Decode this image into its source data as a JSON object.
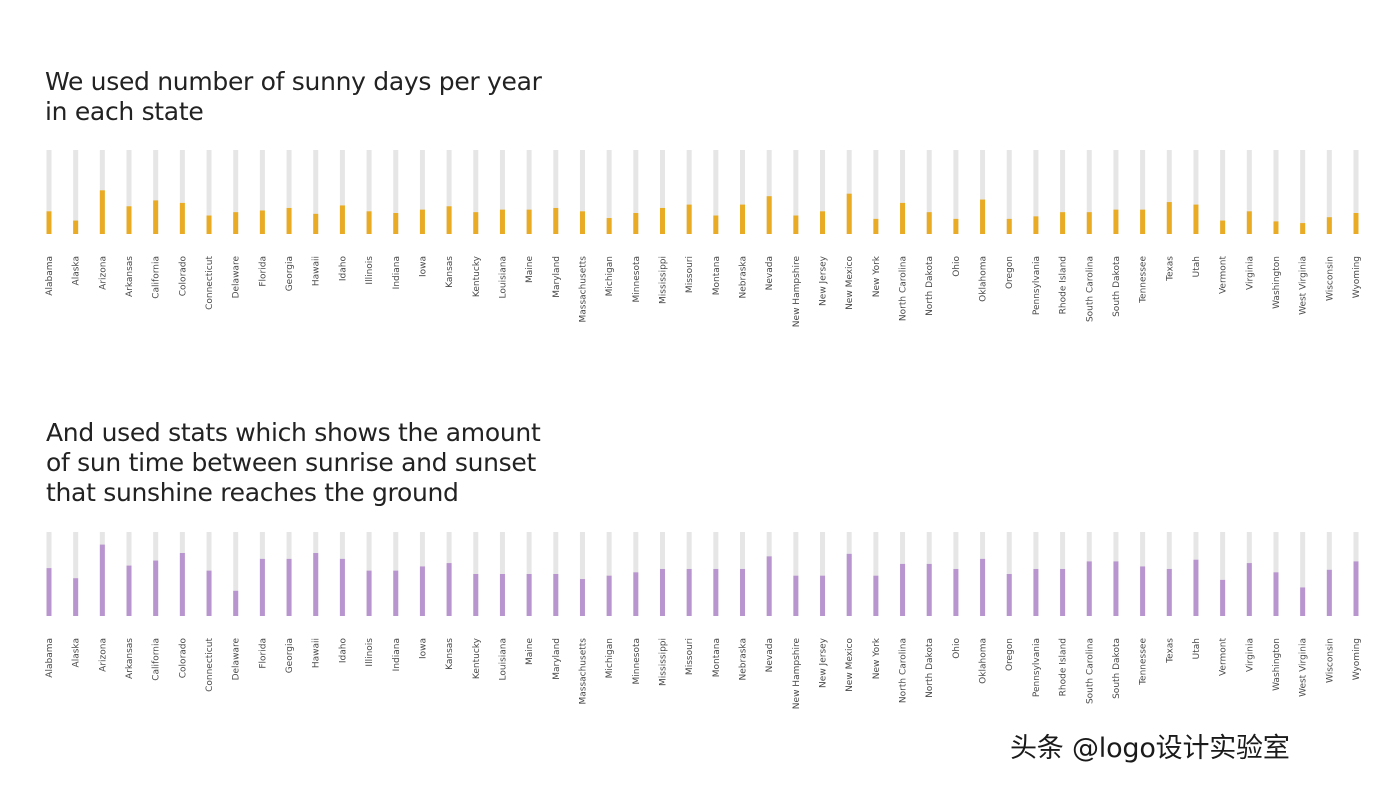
{
  "colors": {
    "track": "#e6e6e6",
    "sunny_days": "#e9ab24",
    "sun_time": "#b995cf",
    "label": "#4a4a4a"
  },
  "headings": {
    "first": [
      "We used number of sunny days per year",
      "in each state"
    ],
    "second": [
      "And used stats which shows the amount",
      "of sun time between sunrise and sunset",
      "that sunshine reaches the ground"
    ]
  },
  "watermark": "头条 @logo设计实验室",
  "chart_data": [
    {
      "type": "bar",
      "title": "We used number of sunny days per year in each state",
      "xlabel": "",
      "ylabel": "",
      "ylim": [
        0,
        100
      ],
      "grid": false,
      "legend": "none",
      "color": "#e9ab24",
      "categories": [
        "Alabama",
        "Alaska",
        "Arizona",
        "Arkansas",
        "California",
        "Colorado",
        "Connecticut",
        "Delaware",
        "Florida",
        "Georgia",
        "Hawaii",
        "Idaho",
        "Illinois",
        "Indiana",
        "Iowa",
        "Kansas",
        "Kentucky",
        "Louisiana",
        "Maine",
        "Maryland",
        "Massachusetts",
        "Michigan",
        "Minnesota",
        "Mississippi",
        "Missouri",
        "Montana",
        "Nebraska",
        "Nevada",
        "New Hampshire",
        "New Jersey",
        "New Mexico",
        "New York",
        "North Carolina",
        "North Dakota",
        "Ohio",
        "Oklahoma",
        "Oregon",
        "Pennsylvania",
        "Rhode Island",
        "South Carolina",
        "South Dakota",
        "Tennessee",
        "Texas",
        "Utah",
        "Vermont",
        "Virginia",
        "Washington",
        "West Virginia",
        "Wisconsin",
        "Wyoming"
      ],
      "values": [
        27,
        16,
        52,
        33,
        40,
        37,
        22,
        26,
        28,
        31,
        24,
        34,
        27,
        25,
        29,
        33,
        26,
        29,
        29,
        31,
        27,
        19,
        25,
        31,
        35,
        22,
        35,
        45,
        22,
        27,
        48,
        18,
        37,
        26,
        18,
        41,
        18,
        21,
        26,
        26,
        29,
        29,
        38,
        35,
        16,
        27,
        15,
        13,
        20,
        25
      ]
    },
    {
      "type": "bar",
      "title": "And used stats which shows the amount of sun time between sunrise and sunset that sunshine reaches the ground",
      "xlabel": "",
      "ylabel": "",
      "ylim": [
        0,
        100
      ],
      "grid": false,
      "legend": "none",
      "color": "#b995cf",
      "categories": [
        "Alabama",
        "Alaska",
        "Arizona",
        "Arkansas",
        "California",
        "Colorado",
        "Connecticut",
        "Delaware",
        "Florida",
        "Georgia",
        "Hawaii",
        "Idaho",
        "Illinois",
        "Indiana",
        "Iowa",
        "Kansas",
        "Kentucky",
        "Louisiana",
        "Maine",
        "Maryland",
        "Massachusetts",
        "Michigan",
        "Minnesota",
        "Mississippi",
        "Missouri",
        "Montana",
        "Nebraska",
        "Nevada",
        "New Hampshire",
        "New Jersey",
        "New Mexico",
        "New York",
        "North Carolina",
        "North Dakota",
        "Ohio",
        "Oklahoma",
        "Oregon",
        "Pennsylvania",
        "Rhode Island",
        "South Carolina",
        "South Dakota",
        "Tennessee",
        "Texas",
        "Utah",
        "Vermont",
        "Virginia",
        "Washington",
        "West Virginia",
        "Wisconsin",
        "Wyoming"
      ],
      "values": [
        57,
        45,
        85,
        60,
        66,
        75,
        54,
        30,
        68,
        68,
        75,
        68,
        54,
        54,
        59,
        63,
        50,
        50,
        50,
        50,
        44,
        48,
        52,
        56,
        56,
        56,
        56,
        71,
        48,
        48,
        74,
        48,
        62,
        62,
        56,
        68,
        50,
        56,
        56,
        65,
        65,
        59,
        56,
        67,
        43,
        63,
        52,
        34,
        55,
        65
      ]
    }
  ]
}
